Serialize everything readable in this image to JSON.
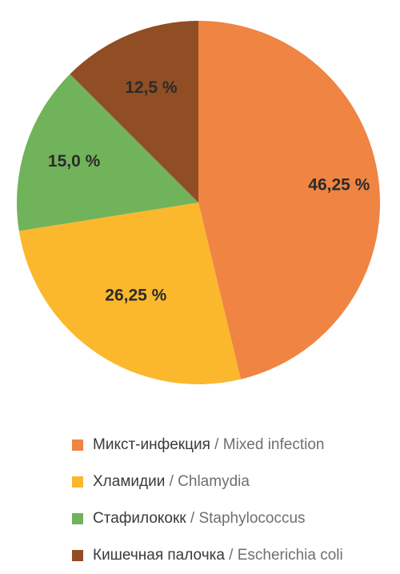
{
  "chart_data": {
    "type": "pie",
    "title": "",
    "slices": [
      {
        "label_ru": "Микст-инфекция",
        "label_en": "Mixed infection",
        "value": 46.25,
        "value_label": "46,25 %",
        "color": "#ef8443"
      },
      {
        "label_ru": "Хламидии",
        "label_en": "Chlamydia",
        "value": 26.25,
        "value_label": "26,25 %",
        "color": "#fbb82d"
      },
      {
        "label_ru": "Стафилококк",
        "label_en": "Staphylococcus",
        "value": 15.0,
        "value_label": "15,0 %",
        "color": "#71b35a"
      },
      {
        "label_ru": "Кишечная палочка",
        "label_en": "Escherichia coli",
        "value": 12.5,
        "value_label": "12,5 %",
        "color": "#914d24"
      }
    ],
    "legend": {
      "placement": "bottom",
      "separator": " / "
    }
  }
}
